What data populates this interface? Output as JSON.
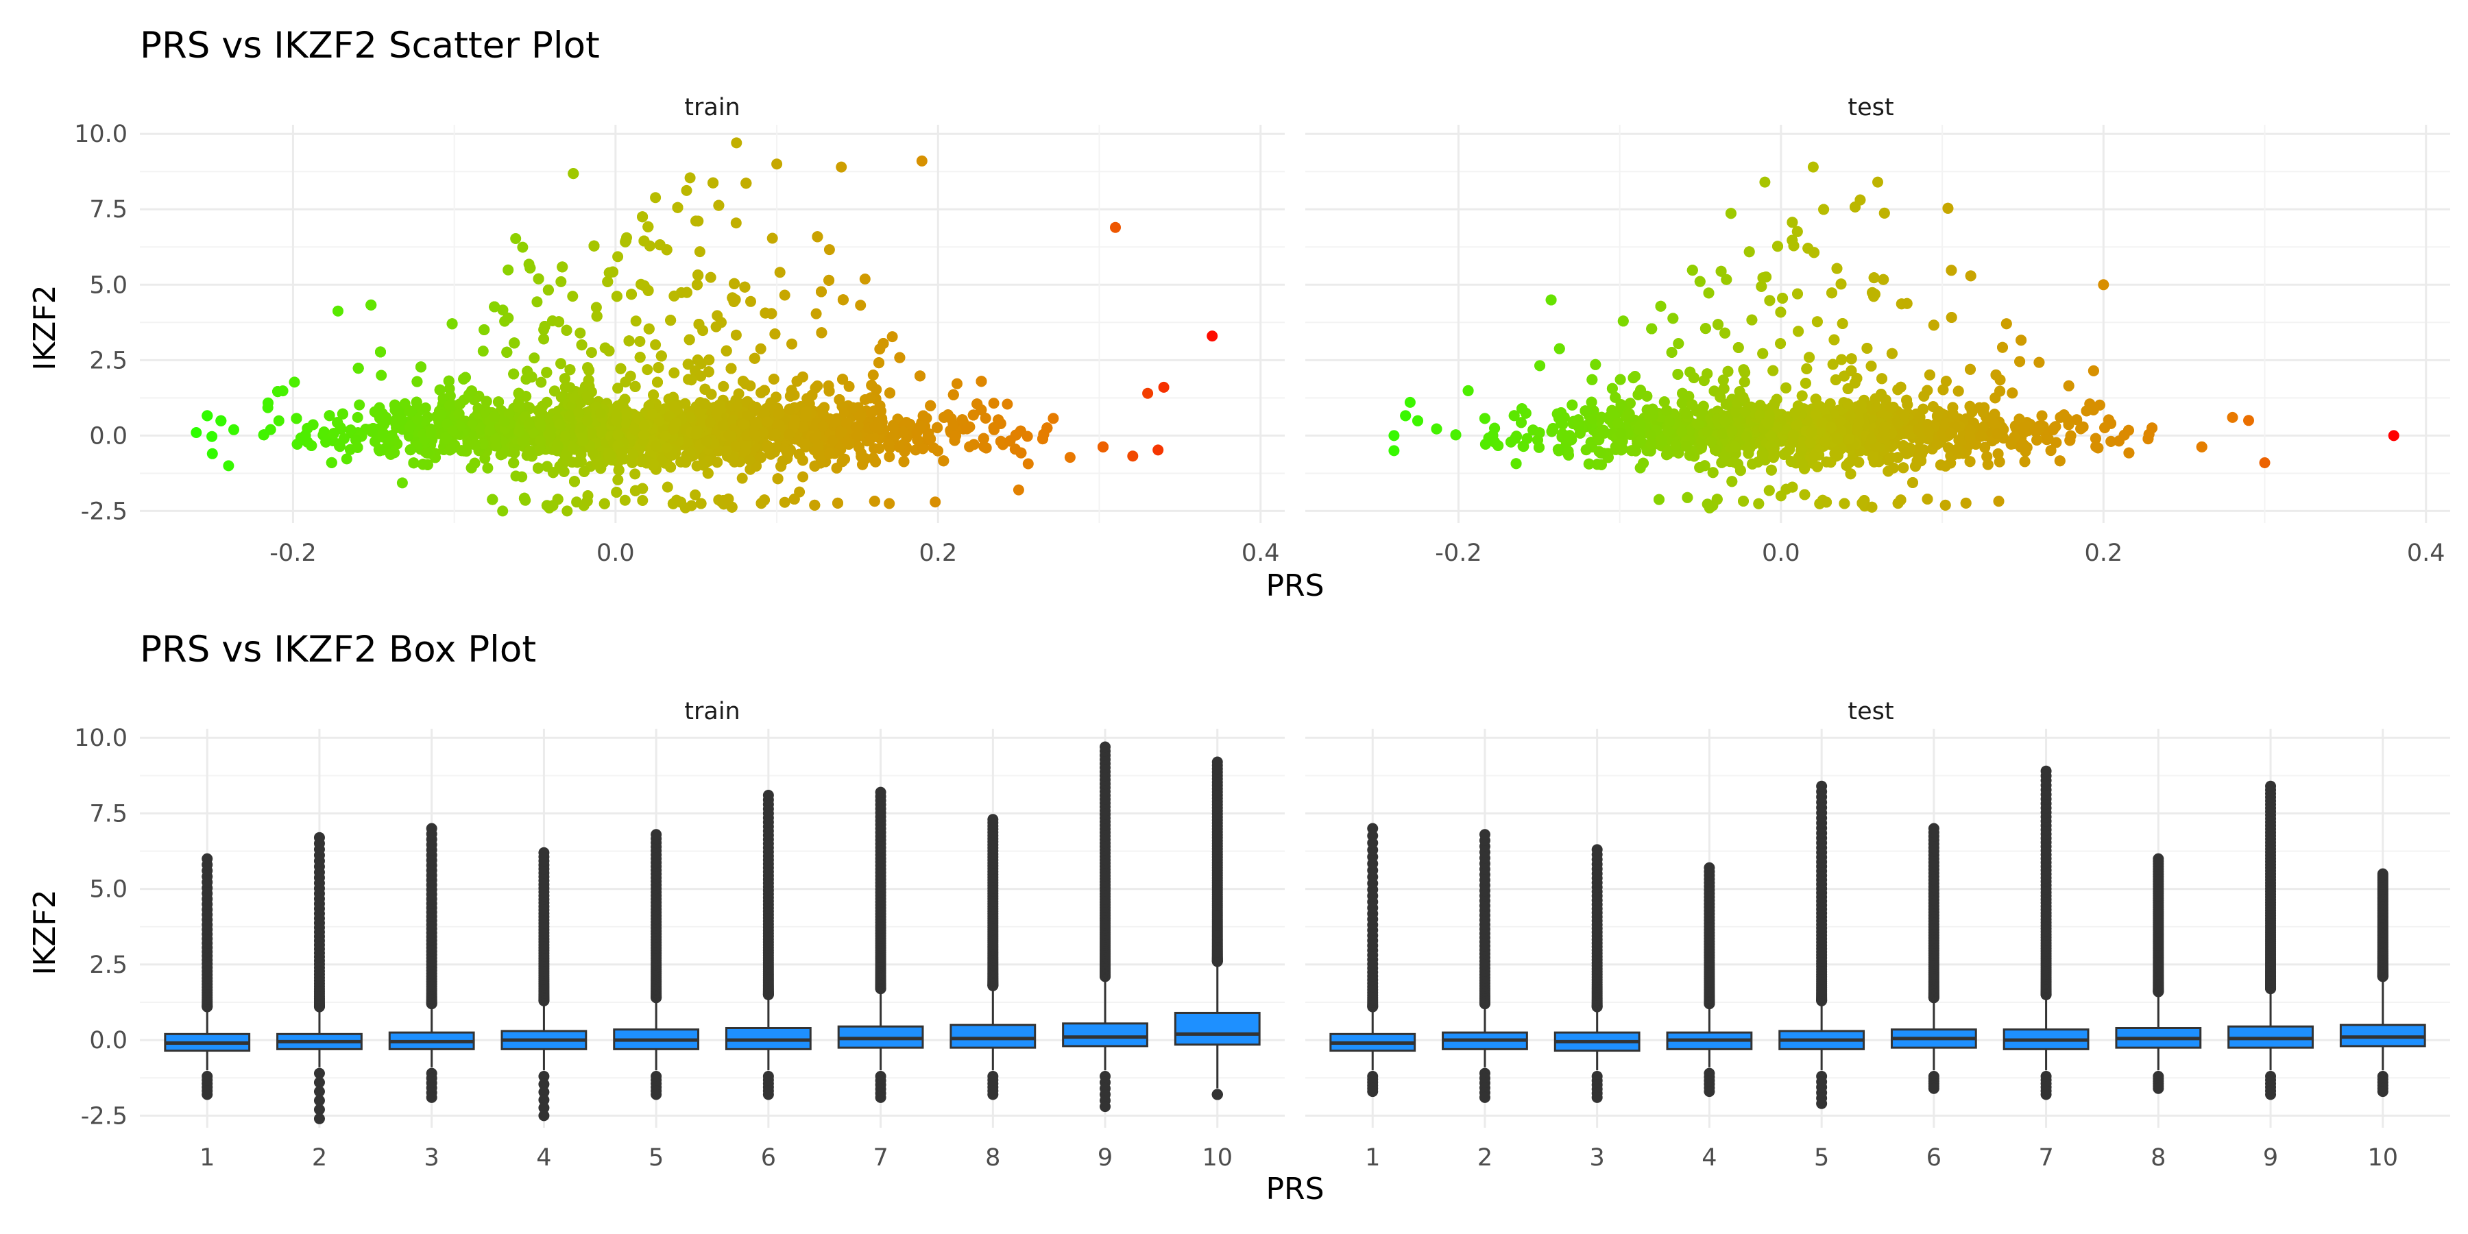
{
  "colors": {
    "low": "#28ff00",
    "mid": "#b7bd00",
    "high_mid": "#e87800",
    "high": "#ff0000",
    "box_fill": "#1e90ff",
    "box_line": "#333333",
    "grid_major": "#ebebeb",
    "grid_minor": "#f3f3f3"
  },
  "chart_data": [
    {
      "type": "scatter",
      "title": "PRS vs IKZF2 Scatter Plot",
      "xlabel": "PRS",
      "ylabel": "IKZF2",
      "xlim": [
        -0.295,
        0.415
      ],
      "ylim": [
        -2.9,
        10.3
      ],
      "x_ticks": [
        -0.2,
        0.0,
        0.2,
        0.4
      ],
      "x_tick_labels": [
        "-0.2",
        "0.0",
        "0.2",
        "0.4"
      ],
      "y_ticks": [
        -2.5,
        0,
        2.5,
        5,
        7.5,
        10
      ],
      "y_tick_labels": [
        "-2.5",
        "0.0",
        "2.5",
        "5.0",
        "7.5",
        "10.0"
      ],
      "color_scale": "color encodes PRS: green (low) to red (high)",
      "grid": true,
      "facets": [
        {
          "label": "train",
          "x_center": 0.02,
          "x_sd": 0.09,
          "x_min": -0.26,
          "x_max": 0.34,
          "y_max_abs": 9.7,
          "outliers": [
            {
              "x": 0.37,
              "y": 3.3
            },
            {
              "x": 0.31,
              "y": 6.9
            },
            {
              "x": 0.075,
              "y": 9.7
            },
            {
              "x": 0.1,
              "y": 9.0
            },
            {
              "x": 0.19,
              "y": 9.1
            },
            {
              "x": 0.14,
              "y": 8.9
            },
            {
              "x": 0.34,
              "y": 1.6
            },
            {
              "x": 0.33,
              "y": 1.4
            },
            {
              "x": -0.26,
              "y": 0.1
            },
            {
              "x": -0.25,
              "y": -0.6
            },
            {
              "x": -0.24,
              "y": -1.0
            },
            {
              "x": -0.07,
              "y": -2.5
            },
            {
              "x": -0.03,
              "y": -2.5
            },
            {
              "x": 0.07,
              "y": -2.1
            },
            {
              "x": 0.25,
              "y": -1.8
            }
          ]
        },
        {
          "label": "test",
          "x_center": 0.01,
          "x_sd": 0.08,
          "x_min": -0.24,
          "x_max": 0.3,
          "y_max_abs": 8.9,
          "outliers": [
            {
              "x": 0.38,
              "y": 0.0
            },
            {
              "x": 0.3,
              "y": -0.9
            },
            {
              "x": 0.02,
              "y": 8.9
            },
            {
              "x": 0.06,
              "y": 8.4
            },
            {
              "x": -0.01,
              "y": 8.4
            },
            {
              "x": 0.2,
              "y": 5.0
            },
            {
              "x": -0.24,
              "y": -0.5
            },
            {
              "x": -0.24,
              "y": 0.0
            },
            {
              "x": -0.23,
              "y": 1.1
            },
            {
              "x": 0.0,
              "y": -2.0
            },
            {
              "x": 0.28,
              "y": 0.6
            },
            {
              "x": 0.29,
              "y": 0.5
            }
          ]
        }
      ]
    },
    {
      "type": "box",
      "title": "PRS vs IKZF2 Box Plot",
      "xlabel": "PRS",
      "ylabel": "IKZF2",
      "ylim": [
        -2.9,
        10.3
      ],
      "categories": [
        "1",
        "2",
        "3",
        "4",
        "5",
        "6",
        "7",
        "8",
        "9",
        "10"
      ],
      "y_ticks": [
        -2.5,
        0,
        2.5,
        5,
        7.5,
        10
      ],
      "y_tick_labels": [
        "-2.5",
        "0.0",
        "2.5",
        "5.0",
        "7.5",
        "10.0"
      ],
      "facets": [
        {
          "label": "train",
          "boxes": [
            {
              "q1": -0.35,
              "median": -0.1,
              "q3": 0.2,
              "lo": -1.0,
              "hi": 1.0,
              "out_top": 6.0,
              "out_bottom": -1.8
            },
            {
              "q1": -0.3,
              "median": -0.05,
              "q3": 0.2,
              "lo": -0.9,
              "hi": 1.0,
              "out_top": 6.7,
              "out_bottom": -2.6
            },
            {
              "q1": -0.3,
              "median": -0.05,
              "q3": 0.25,
              "lo": -0.9,
              "hi": 1.1,
              "out_top": 7.0,
              "out_bottom": -1.9
            },
            {
              "q1": -0.3,
              "median": 0.0,
              "q3": 0.3,
              "lo": -1.0,
              "hi": 1.2,
              "out_top": 6.2,
              "out_bottom": -2.5
            },
            {
              "q1": -0.3,
              "median": 0.0,
              "q3": 0.35,
              "lo": -1.0,
              "hi": 1.3,
              "out_top": 6.8,
              "out_bottom": -1.8
            },
            {
              "q1": -0.3,
              "median": 0.0,
              "q3": 0.4,
              "lo": -1.0,
              "hi": 1.4,
              "out_top": 8.1,
              "out_bottom": -1.8
            },
            {
              "q1": -0.25,
              "median": 0.05,
              "q3": 0.45,
              "lo": -1.0,
              "hi": 1.6,
              "out_top": 8.2,
              "out_bottom": -1.9
            },
            {
              "q1": -0.25,
              "median": 0.05,
              "q3": 0.5,
              "lo": -1.0,
              "hi": 1.7,
              "out_top": 7.3,
              "out_bottom": -1.8
            },
            {
              "q1": -0.2,
              "median": 0.1,
              "q3": 0.55,
              "lo": -1.0,
              "hi": 2.0,
              "out_top": 9.7,
              "out_bottom": -2.2
            },
            {
              "q1": -0.15,
              "median": 0.2,
              "q3": 0.9,
              "lo": -1.6,
              "hi": 2.5,
              "out_top": 9.2,
              "out_bottom": -1.8
            }
          ]
        },
        {
          "label": "test",
          "boxes": [
            {
              "q1": -0.35,
              "median": -0.1,
              "q3": 0.2,
              "lo": -1.0,
              "hi": 1.0,
              "out_top": 7.0,
              "out_bottom": -1.7
            },
            {
              "q1": -0.3,
              "median": 0.0,
              "q3": 0.25,
              "lo": -0.9,
              "hi": 1.1,
              "out_top": 6.8,
              "out_bottom": -1.9
            },
            {
              "q1": -0.35,
              "median": -0.05,
              "q3": 0.25,
              "lo": -1.0,
              "hi": 1.0,
              "out_top": 6.3,
              "out_bottom": -1.9
            },
            {
              "q1": -0.3,
              "median": 0.0,
              "q3": 0.25,
              "lo": -0.9,
              "hi": 1.1,
              "out_top": 5.7,
              "out_bottom": -1.7
            },
            {
              "q1": -0.3,
              "median": 0.0,
              "q3": 0.3,
              "lo": -1.0,
              "hi": 1.2,
              "out_top": 8.4,
              "out_bottom": -2.1
            },
            {
              "q1": -0.25,
              "median": 0.05,
              "q3": 0.35,
              "lo": -1.0,
              "hi": 1.3,
              "out_top": 7.0,
              "out_bottom": -1.6
            },
            {
              "q1": -0.3,
              "median": 0.0,
              "q3": 0.35,
              "lo": -1.0,
              "hi": 1.4,
              "out_top": 8.9,
              "out_bottom": -1.8
            },
            {
              "q1": -0.25,
              "median": 0.05,
              "q3": 0.4,
              "lo": -1.0,
              "hi": 1.5,
              "out_top": 6.0,
              "out_bottom": -1.6
            },
            {
              "q1": -0.25,
              "median": 0.05,
              "q3": 0.45,
              "lo": -1.0,
              "hi": 1.6,
              "out_top": 8.4,
              "out_bottom": -1.8
            },
            {
              "q1": -0.2,
              "median": 0.1,
              "q3": 0.5,
              "lo": -1.0,
              "hi": 2.0,
              "out_top": 5.5,
              "out_bottom": -1.7
            }
          ]
        }
      ]
    }
  ]
}
